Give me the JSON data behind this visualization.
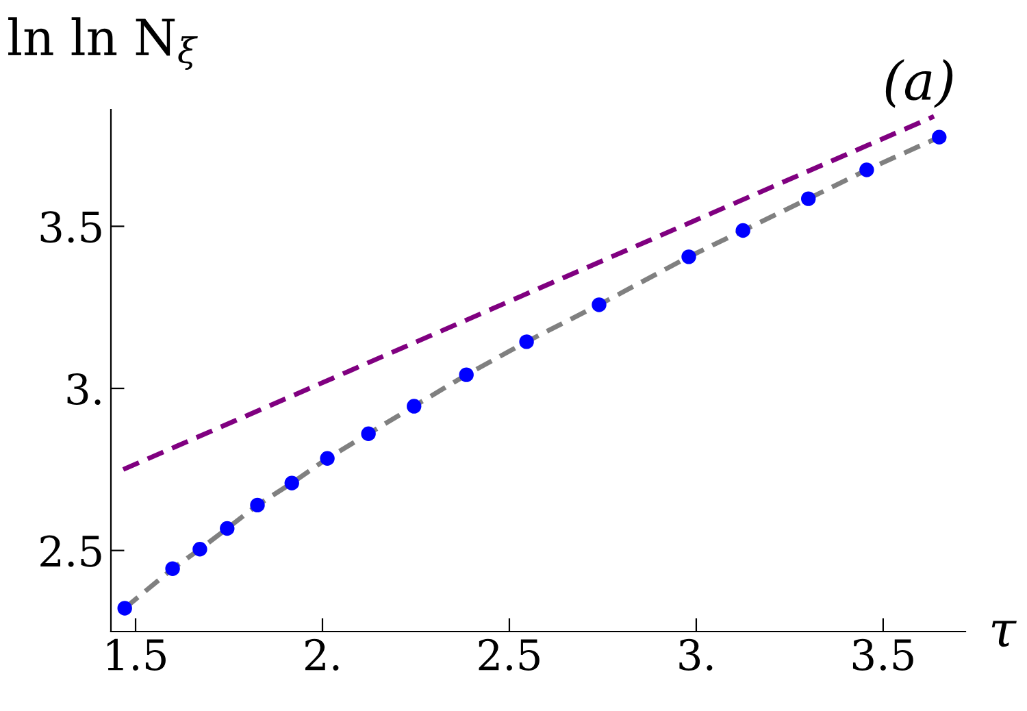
{
  "chart_data": {
    "type": "line",
    "xlabel": "τ",
    "ylabel": "ln ln N$_{ξ}$",
    "annotations": [
      "(a)"
    ],
    "xlim": [
      1.434,
      3.72
    ],
    "ylim": [
      2.25,
      3.86
    ],
    "xticks": [
      {
        "value": 1.5,
        "label": "1.5"
      },
      {
        "value": 2,
        "label": "2."
      },
      {
        "value": 2.5,
        "label": "2.5"
      },
      {
        "value": 3,
        "label": "3."
      },
      {
        "value": 3.5,
        "label": "3.5"
      }
    ],
    "yticks": [
      {
        "value": 2.5,
        "label": "2.5"
      },
      {
        "value": 3,
        "label": "3."
      },
      {
        "value": 3.5,
        "label": "3.5"
      }
    ],
    "grid": false,
    "legend": false,
    "series": [
      {
        "type": "line",
        "color": "#800080",
        "line_style": "dashed",
        "marker": "none",
        "x": [
          1.467,
          3.636
        ],
        "values": [
          2.75,
          3.839
        ]
      },
      {
        "type": "line",
        "color": "#808080",
        "line_style": "dashed",
        "marker": "none",
        "x": [
          1.471,
          1.599,
          1.672,
          1.745,
          1.826,
          1.918,
          2.013,
          2.123,
          2.245,
          2.385,
          2.546,
          2.74,
          2.98,
          3.125,
          3.3,
          3.456,
          3.65
        ],
        "values": [
          2.322,
          2.444,
          2.504,
          2.568,
          2.64,
          2.708,
          2.784,
          2.86,
          2.945,
          3.042,
          3.144,
          3.258,
          3.406,
          3.487,
          3.585,
          3.674,
          3.775
        ]
      },
      {
        "type": "scatter",
        "color": "#0000ff",
        "marker": "circle",
        "x": [
          1.471,
          1.599,
          1.672,
          1.745,
          1.826,
          1.918,
          2.013,
          2.123,
          2.245,
          2.385,
          2.546,
          2.74,
          2.98,
          3.125,
          3.3,
          3.456,
          3.65
        ],
        "values": [
          2.322,
          2.444,
          2.504,
          2.568,
          2.64,
          2.708,
          2.784,
          2.86,
          2.945,
          3.042,
          3.144,
          3.258,
          3.406,
          3.487,
          3.585,
          3.674,
          3.775
        ]
      }
    ]
  }
}
